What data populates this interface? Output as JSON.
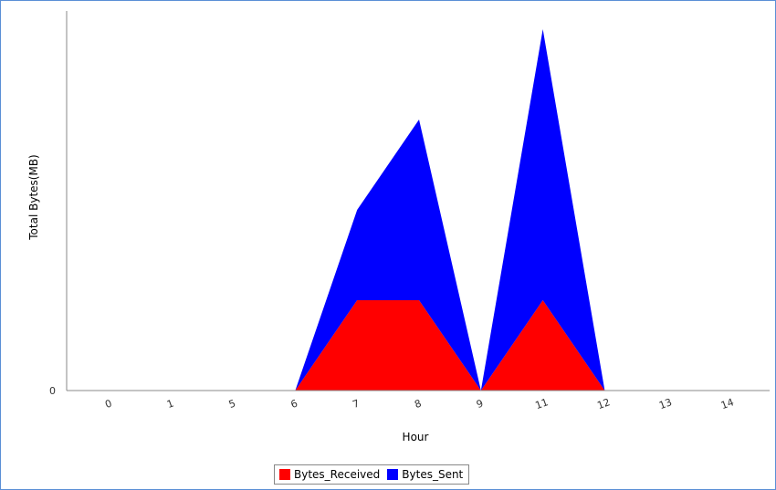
{
  "chart_data": {
    "type": "area",
    "stacked": true,
    "xlabel": "Hour",
    "ylabel": "Total Bytes(MB)",
    "categories": [
      "0",
      "1",
      "5",
      "6",
      "7",
      "8",
      "9",
      "11",
      "12",
      "13",
      "14"
    ],
    "y_tick_labels": [
      "0"
    ],
    "ylim": [
      0,
      4
    ],
    "series": [
      {
        "name": "Bytes_Received",
        "color": "#ff0000",
        "values": [
          0,
          0,
          0,
          0,
          1.0,
          1.0,
          0,
          1.0,
          0,
          0,
          0
        ]
      },
      {
        "name": "Bytes_Sent",
        "color": "#0000ff",
        "values": [
          0,
          0,
          0,
          0,
          1.0,
          2.0,
          0,
          3.0,
          0,
          0,
          0
        ]
      }
    ],
    "legend_position": "bottom",
    "grid": false
  }
}
